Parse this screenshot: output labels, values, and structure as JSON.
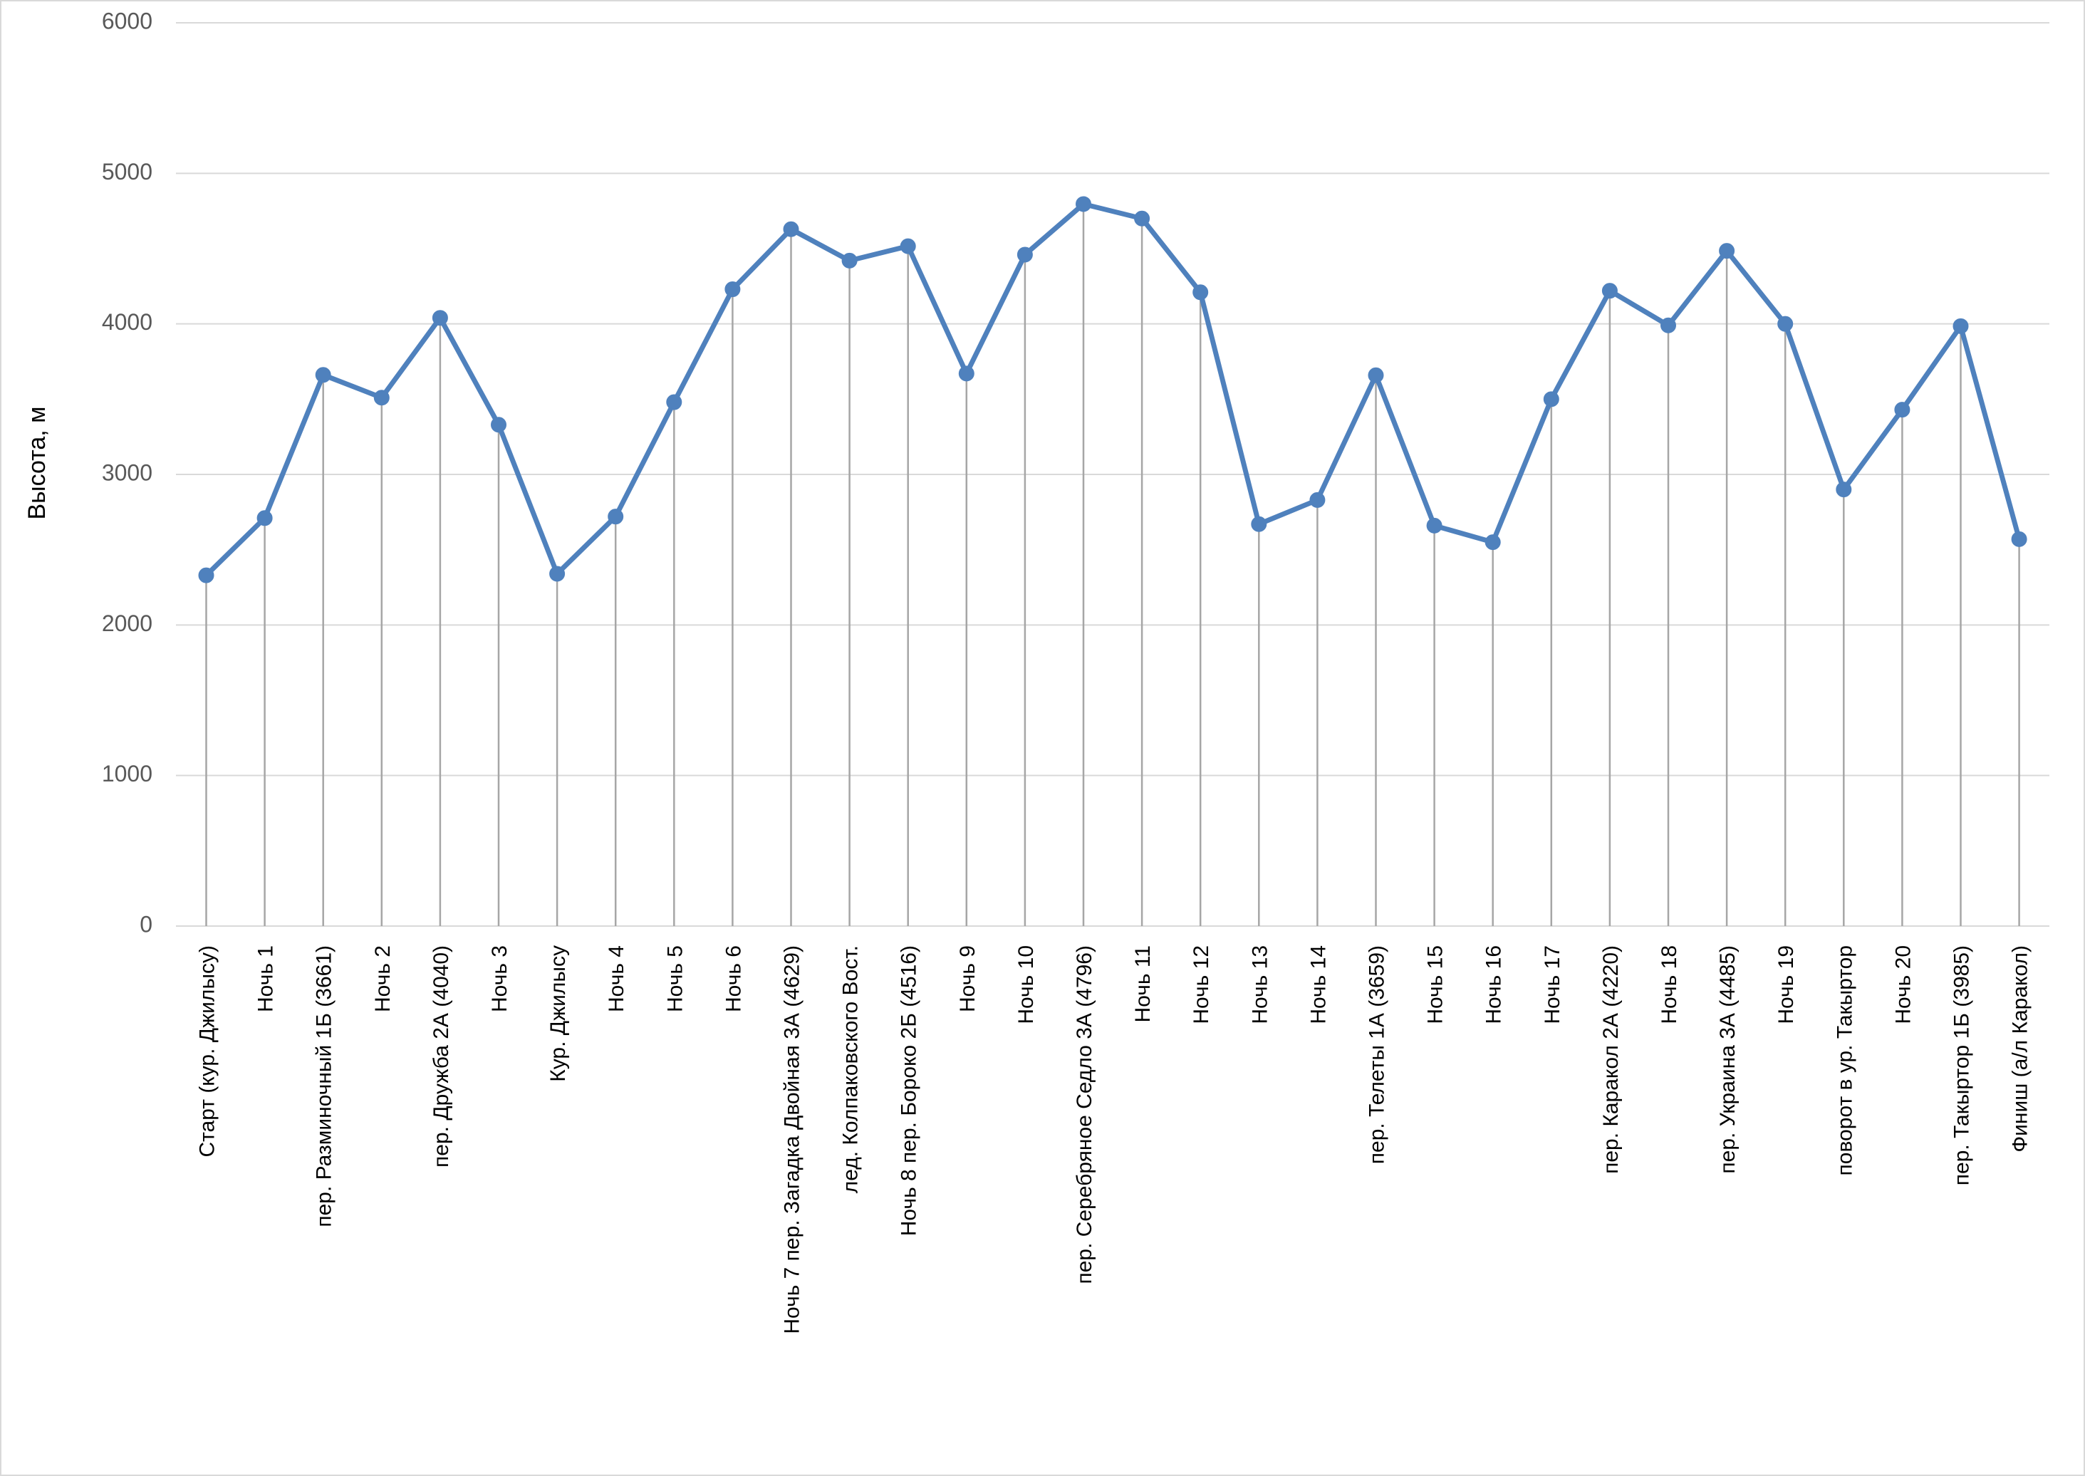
{
  "chart_data": {
    "type": "line",
    "title": "",
    "xlabel": "",
    "ylabel": "Высота, м",
    "ylim": [
      0,
      6000
    ],
    "yticks": [
      0,
      1000,
      2000,
      3000,
      4000,
      5000,
      6000
    ],
    "grid": true,
    "drop_lines": true,
    "line_color": "#4f81bd",
    "categories": [
      "Старт (кур. Джилысу)",
      "Ночь 1",
      "пер. Разминочный 1Б (3661)",
      "Ночь 2",
      "пер. Дружба 2А (4040)",
      "Ночь 3",
      "Кур. Джилысу",
      "Ночь 4",
      "Ночь 5",
      "Ночь 6",
      "Ночь 7 пер. Загадка Двойная 3А (4629)",
      "лед. Колпаковского Вост.",
      "Ночь 8 пер. Бороко 2Б (4516)",
      "Ночь 9",
      "Ночь 10",
      "пер. Серебряное Седло 3А (4796)",
      "Ночь 11",
      "Ночь 12",
      "Ночь 13",
      "Ночь 14",
      "пер. Телеты 1А (3659)",
      "Ночь 15",
      "Ночь 16",
      "Ночь 17",
      "пер. Каракол 2А (4220)",
      "Ночь 18",
      "пер. Украина 3А (4485)",
      "Ночь 19",
      "поворот в ур. Такыртор",
      "Ночь 20",
      "пер. Такыртор 1Б (3985)",
      "Финиш (а/л Каракол)"
    ],
    "series": [
      {
        "values": [
          2330,
          2710,
          3661,
          3510,
          4040,
          3330,
          2340,
          2720,
          3480,
          4230,
          4629,
          4420,
          4516,
          3670,
          4460,
          4796,
          4700,
          4210,
          2670,
          2830,
          3659,
          2660,
          2550,
          3500,
          4220,
          3990,
          4485,
          4000,
          2900,
          3430,
          3985,
          2570
        ]
      }
    ]
  }
}
